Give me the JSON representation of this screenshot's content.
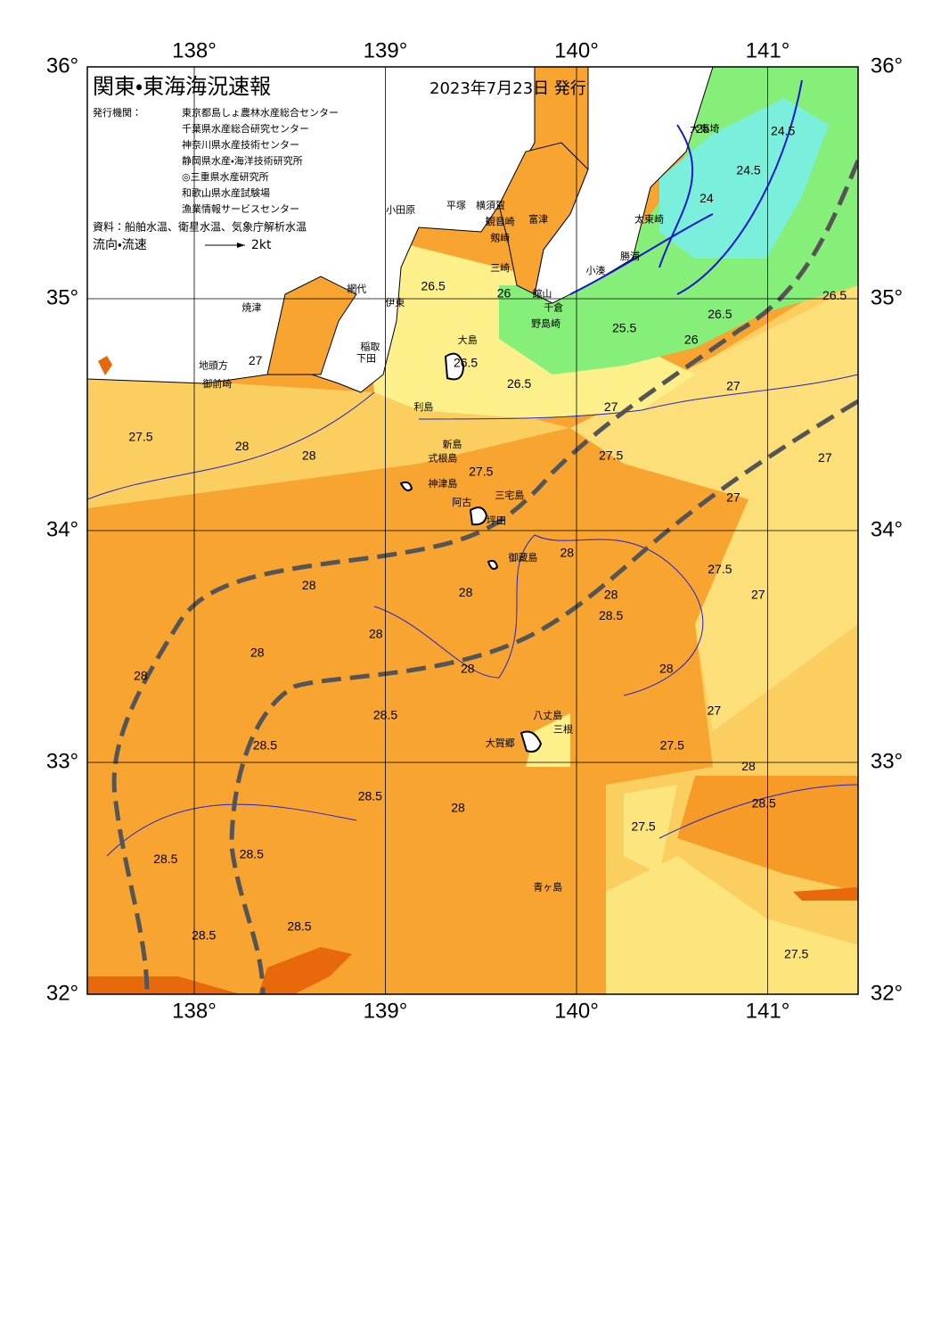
{
  "header": {
    "title": "関東・東海海況速報",
    "date": "2023年7月23日 発行",
    "agencies_label": "発行機関：",
    "agencies": [
      "東京都島しょ農林水産総合センター",
      "千葉県水産総合研究センター",
      "神奈川県水産技術センター",
      "静岡県水産・海洋技術研究所",
      "◎三重県水産研究所",
      "和歌山県水産試験場",
      "漁業情報サービスセンター"
    ],
    "source": "資料：船舶水温、衛星水温、気象庁解析水温",
    "flow_label": "流向・流速",
    "flow_scale": "2kt"
  },
  "axes": {
    "lon_ticks": [
      {
        "value": 138,
        "label": "138°"
      },
      {
        "value": 139,
        "label": "139°"
      },
      {
        "value": 140,
        "label": "140°"
      },
      {
        "value": 141,
        "label": "141°"
      }
    ],
    "lat_ticks": [
      {
        "value": 36,
        "label": "36°"
      },
      {
        "value": 35,
        "label": "35°"
      },
      {
        "value": 34,
        "label": "34°"
      },
      {
        "value": 33,
        "label": "33°"
      },
      {
        "value": 32,
        "label": "32°"
      }
    ]
  },
  "place_names": [
    {
      "label": "大島",
      "lon": 139.43,
      "lat": 34.82
    },
    {
      "label": "利島",
      "lon": 139.2,
      "lat": 34.53
    },
    {
      "label": "新島",
      "lon": 139.35,
      "lat": 34.37
    },
    {
      "label": "式根島",
      "lon": 139.3,
      "lat": 34.31
    },
    {
      "label": "神津島",
      "lon": 139.3,
      "lat": 34.2
    },
    {
      "label": "三宅島",
      "lon": 139.65,
      "lat": 34.15
    },
    {
      "label": "阿古",
      "lon": 139.4,
      "lat": 34.12
    },
    {
      "label": "坪田",
      "lon": 139.58,
      "lat": 34.04
    },
    {
      "label": "御蔵島",
      "lon": 139.72,
      "lat": 33.88
    },
    {
      "label": "八丈島",
      "lon": 139.85,
      "lat": 33.2
    },
    {
      "label": "三根",
      "lon": 139.93,
      "lat": 33.14
    },
    {
      "label": "大賀郷",
      "lon": 139.6,
      "lat": 33.08
    },
    {
      "label": "青ヶ島",
      "lon": 139.85,
      "lat": 32.46
    },
    {
      "label": "下田",
      "lon": 138.9,
      "lat": 34.74
    },
    {
      "label": "稲取",
      "lon": 138.92,
      "lat": 34.79
    },
    {
      "label": "伊東",
      "lon": 139.05,
      "lat": 34.98
    },
    {
      "label": "網代",
      "lon": 138.85,
      "lat": 35.04
    },
    {
      "label": "小田原",
      "lon": 139.08,
      "lat": 35.38
    },
    {
      "label": "平塚",
      "lon": 139.37,
      "lat": 35.4
    },
    {
      "label": "横須賀",
      "lon": 139.55,
      "lat": 35.4
    },
    {
      "label": "観音崎",
      "lon": 139.6,
      "lat": 35.33
    },
    {
      "label": "剱崎",
      "lon": 139.6,
      "lat": 35.26
    },
    {
      "label": "三崎",
      "lon": 139.6,
      "lat": 35.13
    },
    {
      "label": "富津",
      "lon": 139.8,
      "lat": 35.34
    },
    {
      "label": "館山",
      "lon": 139.82,
      "lat": 35.02
    },
    {
      "label": "千倉",
      "lon": 139.88,
      "lat": 34.96
    },
    {
      "label": "野島崎",
      "lon": 139.84,
      "lat": 34.89
    },
    {
      "label": "小湊",
      "lon": 140.1,
      "lat": 35.12
    },
    {
      "label": "勝浦",
      "lon": 140.28,
      "lat": 35.18
    },
    {
      "label": "太東崎",
      "lon": 140.38,
      "lat": 35.34
    },
    {
      "label": "大東埼",
      "lon": 140.67,
      "lat": 35.73
    },
    {
      "label": "焼津",
      "lon": 138.3,
      "lat": 34.96
    },
    {
      "label": "地頭方",
      "lon": 138.1,
      "lat": 34.71
    },
    {
      "label": "御前崎",
      "lon": 138.12,
      "lat": 34.63
    }
  ],
  "contour_labels": [
    {
      "value": 24.5,
      "lon": 140.9,
      "lat": 35.55
    },
    {
      "value": 24.5,
      "lon": 141.08,
      "lat": 35.72
    },
    {
      "value": 25,
      "lon": 140.66,
      "lat": 35.73
    },
    {
      "value": 24,
      "lon": 140.68,
      "lat": 35.43
    },
    {
      "value": 26.5,
      "lon": 139.25,
      "lat": 35.05
    },
    {
      "value": 26,
      "lon": 139.62,
      "lat": 35.02
    },
    {
      "value": 25.5,
      "lon": 140.25,
      "lat": 34.87
    },
    {
      "value": 26,
      "lon": 140.6,
      "lat": 34.82
    },
    {
      "value": 26.5,
      "lon": 140.75,
      "lat": 34.93
    },
    {
      "value": 26.5,
      "lon": 141.35,
      "lat": 35.01
    },
    {
      "value": 26.5,
      "lon": 139.7,
      "lat": 34.63
    },
    {
      "value": 26.5,
      "lon": 139.42,
      "lat": 34.72
    },
    {
      "value": 27,
      "lon": 138.32,
      "lat": 34.73
    },
    {
      "value": 27,
      "lon": 140.18,
      "lat": 34.53
    },
    {
      "value": 27,
      "lon": 140.82,
      "lat": 34.62
    },
    {
      "value": 27,
      "lon": 141.3,
      "lat": 34.31
    },
    {
      "value": 27,
      "lon": 140.82,
      "lat": 34.14
    },
    {
      "value": 27,
      "lon": 140.95,
      "lat": 33.72
    },
    {
      "value": 27,
      "lon": 140.72,
      "lat": 33.22
    },
    {
      "value": 27.5,
      "lon": 137.72,
      "lat": 34.4
    },
    {
      "value": 27.5,
      "lon": 139.5,
      "lat": 34.25
    },
    {
      "value": 27.5,
      "lon": 140.18,
      "lat": 34.32
    },
    {
      "value": 27.5,
      "lon": 140.75,
      "lat": 33.83
    },
    {
      "value": 27.5,
      "lon": 140.5,
      "lat": 33.07
    },
    {
      "value": 27.5,
      "lon": 140.35,
      "lat": 32.72
    },
    {
      "value": 27.5,
      "lon": 141.15,
      "lat": 32.17
    },
    {
      "value": 28,
      "lon": 138.25,
      "lat": 34.36
    },
    {
      "value": 28,
      "lon": 138.6,
      "lat": 34.32
    },
    {
      "value": 28,
      "lon": 138.6,
      "lat": 33.76
    },
    {
      "value": 28,
      "lon": 138.33,
      "lat": 33.47
    },
    {
      "value": 28,
      "lon": 139.95,
      "lat": 33.9
    },
    {
      "value": 28,
      "lon": 139.42,
      "lat": 33.73
    },
    {
      "value": 28,
      "lon": 138.95,
      "lat": 33.55
    },
    {
      "value": 28,
      "lon": 137.72,
      "lat": 33.37
    },
    {
      "value": 28,
      "lon": 139.43,
      "lat": 33.4
    },
    {
      "value": 28,
      "lon": 139.38,
      "lat": 32.8
    },
    {
      "value": 28,
      "lon": 140.47,
      "lat": 33.4
    },
    {
      "value": 28,
      "lon": 140.18,
      "lat": 33.72
    },
    {
      "value": 28,
      "lon": 140.9,
      "lat": 32.98
    },
    {
      "value": 28.5,
      "lon": 139.0,
      "lat": 33.2
    },
    {
      "value": 28.5,
      "lon": 138.37,
      "lat": 33.07
    },
    {
      "value": 28.5,
      "lon": 138.92,
      "lat": 32.85
    },
    {
      "value": 28.5,
      "lon": 140.18,
      "lat": 33.63
    },
    {
      "value": 28.5,
      "lon": 137.85,
      "lat": 32.58
    },
    {
      "value": 28.5,
      "lon": 138.3,
      "lat": 32.6
    },
    {
      "value": 28.5,
      "lon": 138.55,
      "lat": 32.29
    },
    {
      "value": 28.5,
      "lon": 138.05,
      "lat": 32.25
    },
    {
      "value": 28.5,
      "lon": 140.98,
      "lat": 32.82
    }
  ]
}
